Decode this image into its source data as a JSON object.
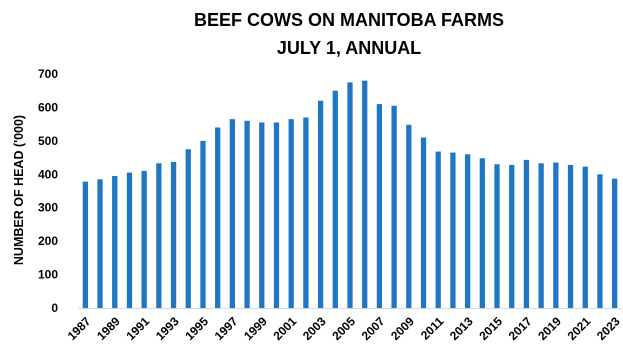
{
  "chart_data": {
    "type": "bar",
    "title_lines": [
      "BEEF COWS ON MANITOBA  FARMS",
      "JULY 1, ANNUAL"
    ],
    "xlabel": "",
    "ylabel": "NUMBER OF HEAD ('000)",
    "ylim": [
      0,
      700
    ],
    "yticks": [
      0,
      100,
      200,
      300,
      400,
      500,
      600,
      700
    ],
    "grid": false,
    "legend": "none",
    "bar_color": "#1F77C4",
    "categories": [
      "1987",
      "1988",
      "1989",
      "1990",
      "1991",
      "1992",
      "1993",
      "1994",
      "1995",
      "1996",
      "1997",
      "1998",
      "1999",
      "2000",
      "2001",
      "2002",
      "2003",
      "2004",
      "2005",
      "2006",
      "2007",
      "2008",
      "2009",
      "2010",
      "2011",
      "2012",
      "2013",
      "2014",
      "2015",
      "2016",
      "2017",
      "2018",
      "2019",
      "2020",
      "2021",
      "2022",
      "2023"
    ],
    "x_tick_labels": [
      "1987",
      "1989",
      "1991",
      "1993",
      "1995",
      "1997",
      "1999",
      "2001",
      "2003",
      "2005",
      "2007",
      "2009",
      "2011",
      "2013",
      "2015",
      "2017",
      "2019",
      "2021",
      "2023"
    ],
    "values": [
      378,
      385,
      395,
      405,
      410,
      433,
      437,
      475,
      500,
      540,
      565,
      560,
      555,
      555,
      565,
      570,
      620,
      650,
      675,
      680,
      610,
      605,
      548,
      510,
      468,
      465,
      460,
      448,
      430,
      428,
      443,
      433,
      435,
      428,
      423,
      400,
      387
    ]
  }
}
